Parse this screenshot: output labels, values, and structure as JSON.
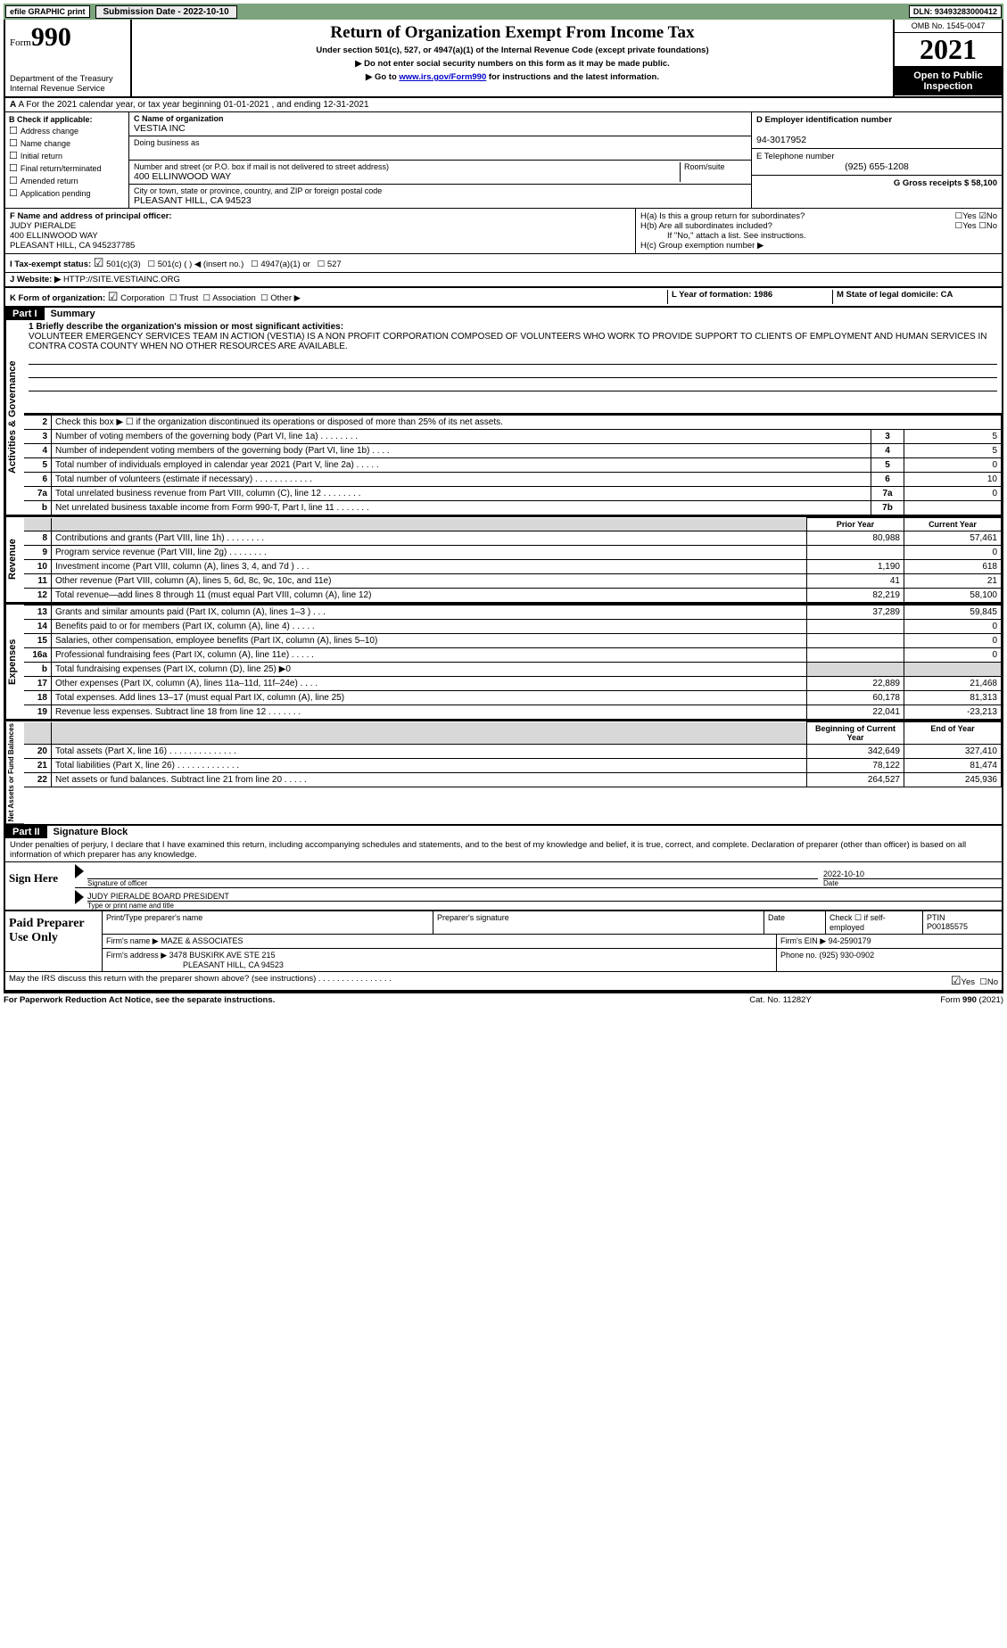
{
  "top_bar": {
    "efile_label": "efile GRAPHIC print",
    "submission_label": "Submission Date - 2022-10-10",
    "dln_label": "DLN: 93493283000412"
  },
  "header": {
    "form_prefix": "Form",
    "form_number": "990",
    "dept1": "Department of the Treasury",
    "dept2": "Internal Revenue Service",
    "title": "Return of Organization Exempt From Income Tax",
    "subtitle": "Under section 501(c), 527, or 4947(a)(1) of the Internal Revenue Code (except private foundations)",
    "note1": "▶ Do not enter social security numbers on this form as it may be made public.",
    "note2_pre": "▶ Go to ",
    "note2_link": "www.irs.gov/Form990",
    "note2_post": " for instructions and the latest information.",
    "omb": "OMB No. 1545-0047",
    "year": "2021",
    "open_pub": "Open to Public Inspection"
  },
  "row_a": "A For the 2021 calendar year, or tax year beginning 01-01-2021     , and ending 12-31-2021",
  "col_b": {
    "hdr": "B Check if applicable:",
    "addr": "Address change",
    "name": "Name change",
    "init": "Initial return",
    "final": "Final return/terminated",
    "amend": "Amended return",
    "app": "Application pending"
  },
  "col_c": {
    "name_label": "C Name of organization",
    "name": "VESTIA INC",
    "dba_label": "Doing business as",
    "addr_label": "Number and street (or P.O. box if mail is not delivered to street address)",
    "room_label": "Room/suite",
    "addr": "400 ELLINWOOD WAY",
    "city_label": "City or town, state or province, country, and ZIP or foreign postal code",
    "city": "PLEASANT HILL, CA   94523"
  },
  "col_d": {
    "ein_label": "D Employer identification number",
    "ein": "94-3017952",
    "tel_label": "E Telephone number",
    "tel": "(925) 655-1208",
    "gross_label": "G Gross receipts $ 58,100"
  },
  "col_f": {
    "label": "F  Name and address of principal officer:",
    "name": "JUDY PIERALDE",
    "addr1": "400 ELLINWOOD WAY",
    "addr2": "PLEASANT HILL, CA   945237785"
  },
  "col_h": {
    "a": "H(a)   Is this a group return for subordinates?",
    "b": "H(b)  Are all subordinates included?",
    "b_note": "If \"No,\" attach a list. See instructions.",
    "c": "H(c)   Group exemption number ▶"
  },
  "row_i": {
    "label": "I    Tax-exempt status:",
    "opt1": "501(c)(3)",
    "opt2": "501(c) (   ) ◀ (insert no.)",
    "opt3": "4947(a)(1) or",
    "opt4": "527"
  },
  "row_j": {
    "label": "J   Website: ▶",
    "val": "HTTP://SITE.VESTIAINC.ORG"
  },
  "row_k": {
    "label": "K Form of organization:",
    "corp": "Corporation",
    "trust": "Trust",
    "assoc": "Association",
    "other": "Other ▶"
  },
  "row_lm": {
    "l": "L  Year of formation: 1986",
    "m": "M State of legal domicile: CA"
  },
  "part1": {
    "hdr": "Part I",
    "title": "Summary",
    "q1_label": "1  Briefly describe the organization's mission or most significant activities:",
    "q1_text": "VOLUNTEER EMERGENCY SERVICES TEAM IN ACTION (VESTIA) IS A NON PROFIT CORPORATION COMPOSED OF VOLUNTEERS WHO WORK TO PROVIDE SUPPORT TO CLIENTS OF EMPLOYMENT AND HUMAN SERVICES IN CONTRA COSTA COUNTY WHEN NO OTHER RESOURCES ARE AVAILABLE.",
    "side_gov": "Activities & Governance",
    "side_rev": "Revenue",
    "side_exp": "Expenses",
    "side_net": "Net Assets or Fund Balances",
    "q2": "Check this box ▶ ☐  if the organization discontinued its operations or disposed of more than 25% of its net assets.",
    "prior_hdr": "Prior Year",
    "curr_hdr": "Current Year",
    "begin_hdr": "Beginning of Current Year",
    "end_hdr": "End of Year",
    "lines_gov": [
      {
        "n": "3",
        "d": "Number of voting members of the governing body (Part VI, line 1a)  .    .    .    .    .    .    .    .",
        "box": "3",
        "v": "5"
      },
      {
        "n": "4",
        "d": "Number of independent voting members of the governing body (Part VI, line 1b)   .    .    .    .",
        "box": "4",
        "v": "5"
      },
      {
        "n": "5",
        "d": "Total number of individuals employed in calendar year 2021 (Part V, line 2a)  .    .    .    .    .",
        "box": "5",
        "v": "0"
      },
      {
        "n": "6",
        "d": "Total number of volunteers (estimate if necessary)   .    .    .    .    .    .    .    .    .    .    .    .",
        "box": "6",
        "v": "10"
      },
      {
        "n": "7a",
        "d": "Total unrelated business revenue from Part VIII, column (C), line 12  .    .    .    .    .    .    .    .",
        "box": "7a",
        "v": "0"
      },
      {
        "n": "b",
        "d": "Net unrelated business taxable income from Form 990-T, Part I, line 11  .    .    .    .    .    .    .",
        "box": "7b",
        "v": ""
      }
    ],
    "lines_rev": [
      {
        "n": "8",
        "d": "Contributions and grants (Part VIII, line 1h)    .    .    .    .    .    .    .    .",
        "p": "80,988",
        "c": "57,461"
      },
      {
        "n": "9",
        "d": "Program service revenue (Part VIII, line 2g)    .    .    .    .    .    .    .    .",
        "p": "",
        "c": "0"
      },
      {
        "n": "10",
        "d": "Investment income (Part VIII, column (A), lines 3, 4, and 7d )    .    .    .",
        "p": "1,190",
        "c": "618"
      },
      {
        "n": "11",
        "d": "Other revenue (Part VIII, column (A), lines 5, 6d, 8c, 9c, 10c, and 11e)",
        "p": "41",
        "c": "21"
      },
      {
        "n": "12",
        "d": "Total revenue—add lines 8 through 11 (must equal Part VIII, column (A), line 12)",
        "p": "82,219",
        "c": "58,100"
      }
    ],
    "lines_exp": [
      {
        "n": "13",
        "d": "Grants and similar amounts paid (Part IX, column (A), lines 1–3 )   .    .    .",
        "p": "37,289",
        "c": "59,845"
      },
      {
        "n": "14",
        "d": "Benefits paid to or for members (Part IX, column (A), line 4)  .    .    .    .    .",
        "p": "",
        "c": "0"
      },
      {
        "n": "15",
        "d": "Salaries, other compensation, employee benefits (Part IX, column (A), lines 5–10)",
        "p": "",
        "c": "0"
      },
      {
        "n": "16a",
        "d": "Professional fundraising fees (Part IX, column (A), line 11e)  .    .    .    .    .",
        "p": "",
        "c": "0"
      },
      {
        "n": "b",
        "d": "Total fundraising expenses (Part IX, column (D), line 25) ▶0",
        "p": "shade",
        "c": "shade"
      },
      {
        "n": "17",
        "d": "Other expenses (Part IX, column (A), lines 11a–11d, 11f–24e)   .    .    .    .",
        "p": "22,889",
        "c": "21,468"
      },
      {
        "n": "18",
        "d": "Total expenses. Add lines 13–17 (must equal Part IX, column (A), line 25)",
        "p": "60,178",
        "c": "81,313"
      },
      {
        "n": "19",
        "d": "Revenue less expenses. Subtract line 18 from line 12  .    .    .    .    .    .    .",
        "p": "22,041",
        "c": "-23,213"
      }
    ],
    "lines_net": [
      {
        "n": "20",
        "d": "Total assets (Part X, line 16)  .    .    .    .    .    .    .    .    .    .    .    .    .    .",
        "p": "342,649",
        "c": "327,410"
      },
      {
        "n": "21",
        "d": "Total liabilities (Part X, line 26)  .    .    .    .    .    .    .    .    .    .    .    .    .",
        "p": "78,122",
        "c": "81,474"
      },
      {
        "n": "22",
        "d": "Net assets or fund balances. Subtract line 21 from line 20  .    .    .    .    .",
        "p": "264,527",
        "c": "245,936"
      }
    ]
  },
  "part2": {
    "hdr": "Part II",
    "title": "Signature Block",
    "decl": "Under penalties of perjury, I declare that I have examined this return, including accompanying schedules and statements, and to the best of my knowledge and belief, it is true, correct, and complete. Declaration of preparer (other than officer) is based on all information of which preparer has any knowledge.",
    "sign_here": "Sign Here",
    "sig_officer": "Signature of officer",
    "sig_date": "2022-10-10",
    "date_lbl": "Date",
    "officer_name": "JUDY PIERALDE  BOARD PRESIDENT",
    "type_name": "Type or print name and title",
    "paid_prep": "Paid Preparer Use Only",
    "prep_name_lbl": "Print/Type preparer's name",
    "prep_sig_lbl": "Preparer's signature",
    "prep_date_lbl": "Date",
    "check_self": "Check ☐ if self-employed",
    "ptin_lbl": "PTIN",
    "ptin": "P00185575",
    "firm_name_lbl": "Firm's name     ▶",
    "firm_name": "MAZE & ASSOCIATES",
    "firm_ein_lbl": "Firm's EIN ▶ 94-2590179",
    "firm_addr_lbl": "Firm's address ▶",
    "firm_addr1": "3478 BUSKIRK AVE STE 215",
    "firm_addr2": "PLEASANT HILL, CA   94523",
    "phone_lbl": "Phone no. (925) 930-0902",
    "discuss": "May the IRS discuss this return with the preparer shown above? (see instructions)    .    .    .    .    .    .    .    .    .    .    .    .    .    .    .    .",
    "yes": "Yes",
    "no": "No"
  },
  "footer": {
    "pra": "For Paperwork Reduction Act Notice, see the separate instructions.",
    "cat": "Cat. No. 11282Y",
    "form": "Form 990 (2021)"
  }
}
